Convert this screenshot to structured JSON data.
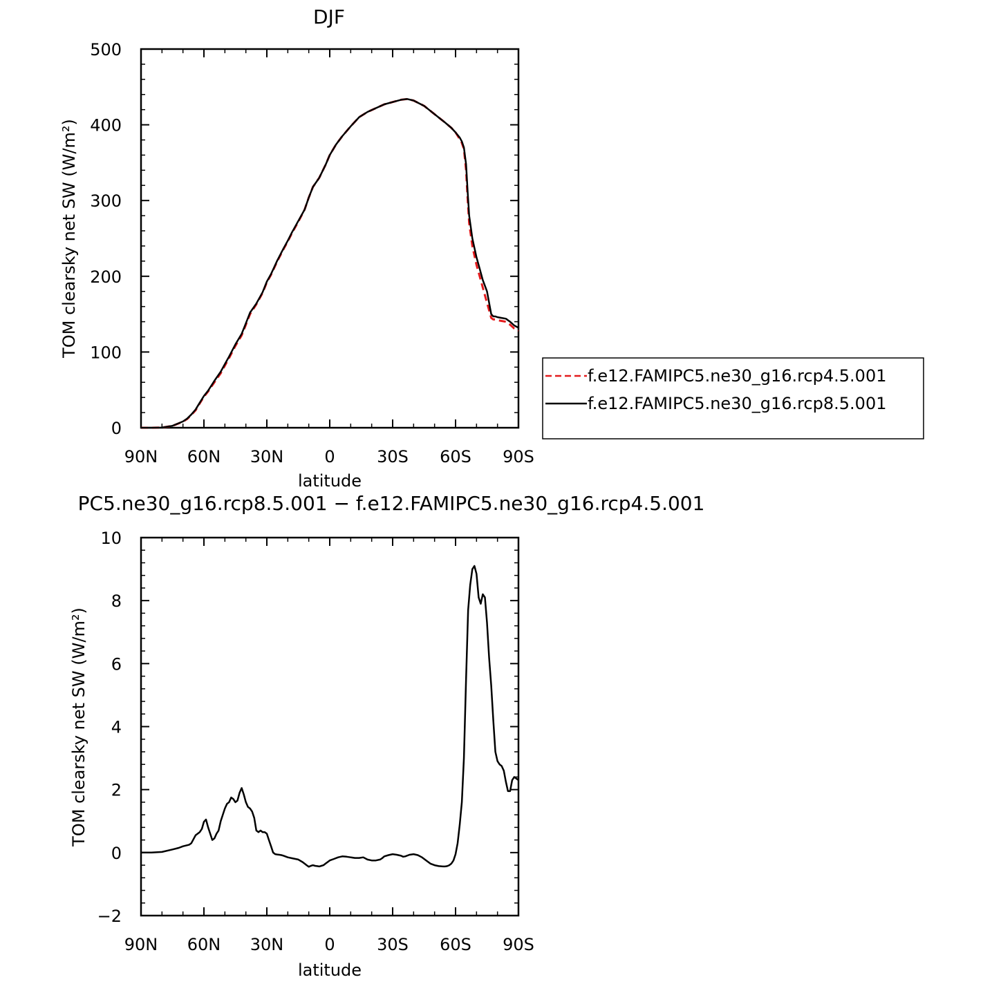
{
  "chart_data": [
    {
      "type": "line",
      "title": "DJF",
      "xlabel": "latitude",
      "ylabel": "TOM clearsky net SW (W/m²)",
      "xlim": [
        90,
        -90
      ],
      "ylim": [
        0,
        500
      ],
      "x_ticks": [
        {
          "value": 90,
          "label": "90N"
        },
        {
          "value": 60,
          "label": "60N"
        },
        {
          "value": 30,
          "label": "30N"
        },
        {
          "value": 0,
          "label": "0"
        },
        {
          "value": -30,
          "label": "30S"
        },
        {
          "value": -60,
          "label": "60S"
        },
        {
          "value": -90,
          "label": "90S"
        }
      ],
      "y_ticks": [
        0,
        100,
        200,
        300,
        400,
        500
      ],
      "legend": {
        "placement": "right-outside",
        "entries": [
          {
            "name": "f.e12.FAMIPC5.ne30_g16.rcp4.5.001",
            "color": "#e31a1c",
            "dash": "dashed"
          },
          {
            "name": "f.e12.FAMIPC5.ne30_g16.rcp8.5.001",
            "color": "#000000",
            "dash": "solid"
          }
        ]
      },
      "series": [
        {
          "name": "f.e12.FAMIPC5.ne30_g16.rcp4.5.001",
          "color": "#e31a1c",
          "dash": "dashed",
          "x": [
            90,
            85,
            80,
            75,
            70,
            68,
            66,
            64,
            62,
            60,
            58,
            55,
            52,
            50,
            48,
            45,
            42,
            40,
            38,
            35,
            32,
            30,
            28,
            25,
            22,
            20,
            18,
            15,
            12,
            10,
            8,
            5,
            2,
            0,
            -3,
            -6,
            -10,
            -14,
            -18,
            -22,
            -26,
            -30,
            -34,
            -37,
            -40,
            -45,
            -50,
            -55,
            -58,
            -60,
            -62,
            -63,
            -64,
            -65,
            -65.8,
            -66.5,
            -68,
            -70,
            -71.5,
            -73,
            -75,
            -77,
            -78,
            -79,
            -80,
            -82,
            -84,
            -86,
            -88,
            -90
          ],
          "values": [
            0,
            0,
            0.3,
            2.5,
            8,
            11.5,
            17,
            23,
            32,
            41,
            48,
            60,
            72,
            82,
            92,
            108,
            122,
            136,
            150,
            163,
            178,
            192,
            202,
            220,
            236,
            246,
            257,
            272,
            288,
            304,
            318,
            330,
            347,
            360,
            374,
            385,
            398,
            410,
            417,
            422,
            427,
            430,
            433,
            434,
            432,
            425,
            414,
            403,
            396,
            390,
            381,
            376,
            368,
            340,
            300,
            270,
            240,
            215,
            200,
            185,
            165,
            145,
            143,
            143,
            142,
            141,
            140,
            136,
            131,
            128
          ]
        },
        {
          "name": "f.e12.FAMIPC5.ne30_g16.rcp8.5.001",
          "color": "#000000",
          "dash": "solid",
          "x": [
            90,
            85,
            80,
            75,
            70,
            68,
            66,
            64,
            62,
            60,
            58,
            55,
            52,
            50,
            48,
            45,
            42,
            40,
            38,
            35,
            32,
            30,
            28,
            25,
            22,
            20,
            18,
            15,
            12,
            10,
            8,
            5,
            2,
            0,
            -3,
            -6,
            -10,
            -14,
            -18,
            -22,
            -26,
            -30,
            -34,
            -37,
            -40,
            -45,
            -50,
            -55,
            -58,
            -60,
            -62,
            -63,
            -64,
            -65,
            -65.8,
            -66.5,
            -68,
            -70,
            -71.5,
            -73,
            -75,
            -77,
            -78,
            -79,
            -80,
            -82,
            -84,
            -86,
            -88,
            -90
          ],
          "values": [
            0,
            0,
            0.3,
            2.6,
            8.3,
            12,
            17.5,
            24,
            33,
            42,
            49,
            62,
            74,
            84,
            94,
            110,
            124,
            138,
            152,
            164,
            179,
            193,
            203,
            221,
            237,
            247,
            258,
            273,
            288,
            304,
            318,
            330,
            347,
            360,
            374,
            385,
            398,
            410,
            417,
            422,
            427,
            430,
            433,
            434,
            432,
            425,
            414,
            403,
            396,
            390,
            383,
            378,
            370,
            348,
            310,
            280,
            250,
            225,
            210,
            195,
            180,
            150,
            147,
            147,
            146,
            145,
            144,
            140,
            135,
            132
          ]
        }
      ]
    },
    {
      "type": "line",
      "title": "PC5.ne30_g16.rcp8.5.001 − f.e12.FAMIPC5.ne30_g16.rcp4.5.001",
      "xlabel": "latitude",
      "ylabel": "TOM clearsky net SW (W/m²)",
      "xlim": [
        90,
        -90
      ],
      "ylim": [
        -2,
        10
      ],
      "x_ticks": [
        {
          "value": 90,
          "label": "90N"
        },
        {
          "value": 60,
          "label": "60N"
        },
        {
          "value": 30,
          "label": "30N"
        },
        {
          "value": 0,
          "label": "0"
        },
        {
          "value": -30,
          "label": "30S"
        },
        {
          "value": -60,
          "label": "60S"
        },
        {
          "value": -90,
          "label": "90S"
        }
      ],
      "y_ticks": [
        -2,
        0,
        2,
        4,
        6,
        8,
        10
      ],
      "series": [
        {
          "color": "#000000",
          "dash": "solid",
          "x": [
            90,
            85,
            80,
            75,
            72,
            70,
            67,
            66,
            64,
            63,
            62,
            61,
            60,
            59,
            58,
            57,
            56,
            55,
            54,
            53,
            52,
            51,
            50,
            49,
            48,
            47,
            46,
            45,
            44,
            43,
            42,
            41,
            40,
            39,
            38,
            37,
            36,
            35,
            34,
            33,
            32,
            31,
            30,
            29,
            28,
            27,
            26,
            25,
            24,
            23,
            22,
            20,
            18,
            15,
            13,
            12,
            11,
            10,
            9,
            8,
            7,
            6,
            5,
            4,
            3,
            2,
            1,
            0,
            -2,
            -4,
            -6,
            -8,
            -10,
            -12,
            -14,
            -16,
            -18,
            -20,
            -22,
            -24,
            -25,
            -26,
            -28,
            -30,
            -32,
            -34,
            -35,
            -36,
            -38,
            -40,
            -42,
            -44,
            -46,
            -48,
            -50,
            -52,
            -54,
            -55,
            -56,
            -57,
            -58,
            -59,
            -60,
            -61,
            -62,
            -63,
            -64,
            -65,
            -66,
            -67,
            -68,
            -69,
            -70,
            -71,
            -72,
            -73,
            -74,
            -75,
            -76,
            -77,
            -78,
            -79,
            -80,
            -81,
            -82,
            -83,
            -84,
            -85,
            -86,
            -87,
            -88,
            -89,
            -90
          ],
          "values": [
            0,
            0,
            0.02,
            0.1,
            0.15,
            0.2,
            0.25,
            0.3,
            0.55,
            0.6,
            0.65,
            0.75,
            0.98,
            1.05,
            0.8,
            0.6,
            0.4,
            0.45,
            0.6,
            0.7,
            1.0,
            1.2,
            1.4,
            1.55,
            1.6,
            1.75,
            1.7,
            1.6,
            1.65,
            1.9,
            2.05,
            1.85,
            1.6,
            1.45,
            1.4,
            1.3,
            1.1,
            0.7,
            0.65,
            0.7,
            0.65,
            0.65,
            0.6,
            0.4,
            0.2,
            0.0,
            -0.05,
            -0.06,
            -0.07,
            -0.08,
            -0.1,
            -0.15,
            -0.18,
            -0.22,
            -0.3,
            -0.35,
            -0.4,
            -0.45,
            -0.42,
            -0.4,
            -0.42,
            -0.43,
            -0.44,
            -0.42,
            -0.4,
            -0.35,
            -0.3,
            -0.25,
            -0.2,
            -0.15,
            -0.12,
            -0.13,
            -0.15,
            -0.17,
            -0.17,
            -0.15,
            -0.22,
            -0.25,
            -0.25,
            -0.22,
            -0.18,
            -0.12,
            -0.08,
            -0.05,
            -0.07,
            -0.1,
            -0.13,
            -0.12,
            -0.07,
            -0.05,
            -0.08,
            -0.15,
            -0.25,
            -0.35,
            -0.4,
            -0.43,
            -0.44,
            -0.44,
            -0.43,
            -0.4,
            -0.35,
            -0.25,
            -0.05,
            0.3,
            0.9,
            1.6,
            3.0,
            5.5,
            7.7,
            8.5,
            9.0,
            9.1,
            8.85,
            8.1,
            7.9,
            8.2,
            8.1,
            7.3,
            6.2,
            5.3,
            4.2,
            3.2,
            2.9,
            2.8,
            2.75,
            2.6,
            2.25,
            1.95,
            1.95,
            2.3,
            2.4,
            2.35,
            2.3
          ]
        }
      ]
    }
  ]
}
